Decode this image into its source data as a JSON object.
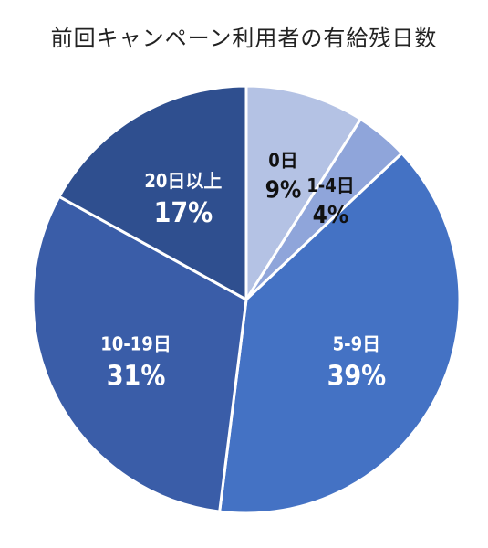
{
  "chart_data": {
    "type": "pie",
    "title": "前回キャンペーン利用者の有給残日数",
    "slices": [
      {
        "label": "0日",
        "value": 9,
        "value_label": "9%",
        "color": "#b4c2e4",
        "text_color": "#111111"
      },
      {
        "label": "1-4日",
        "value": 4,
        "value_label": "4%",
        "color": "#8fa5da",
        "text_color": "#111111"
      },
      {
        "label": "5-9日",
        "value": 39,
        "value_label": "39%",
        "color": "#4472c4",
        "text_color": "#ffffff"
      },
      {
        "label": "10-19日",
        "value": 31,
        "value_label": "31%",
        "color": "#3a5da8",
        "text_color": "#ffffff"
      },
      {
        "label": "20日以上",
        "value": 17,
        "value_label": "17%",
        "color": "#2f4f8f",
        "text_color": "#ffffff"
      }
    ]
  }
}
